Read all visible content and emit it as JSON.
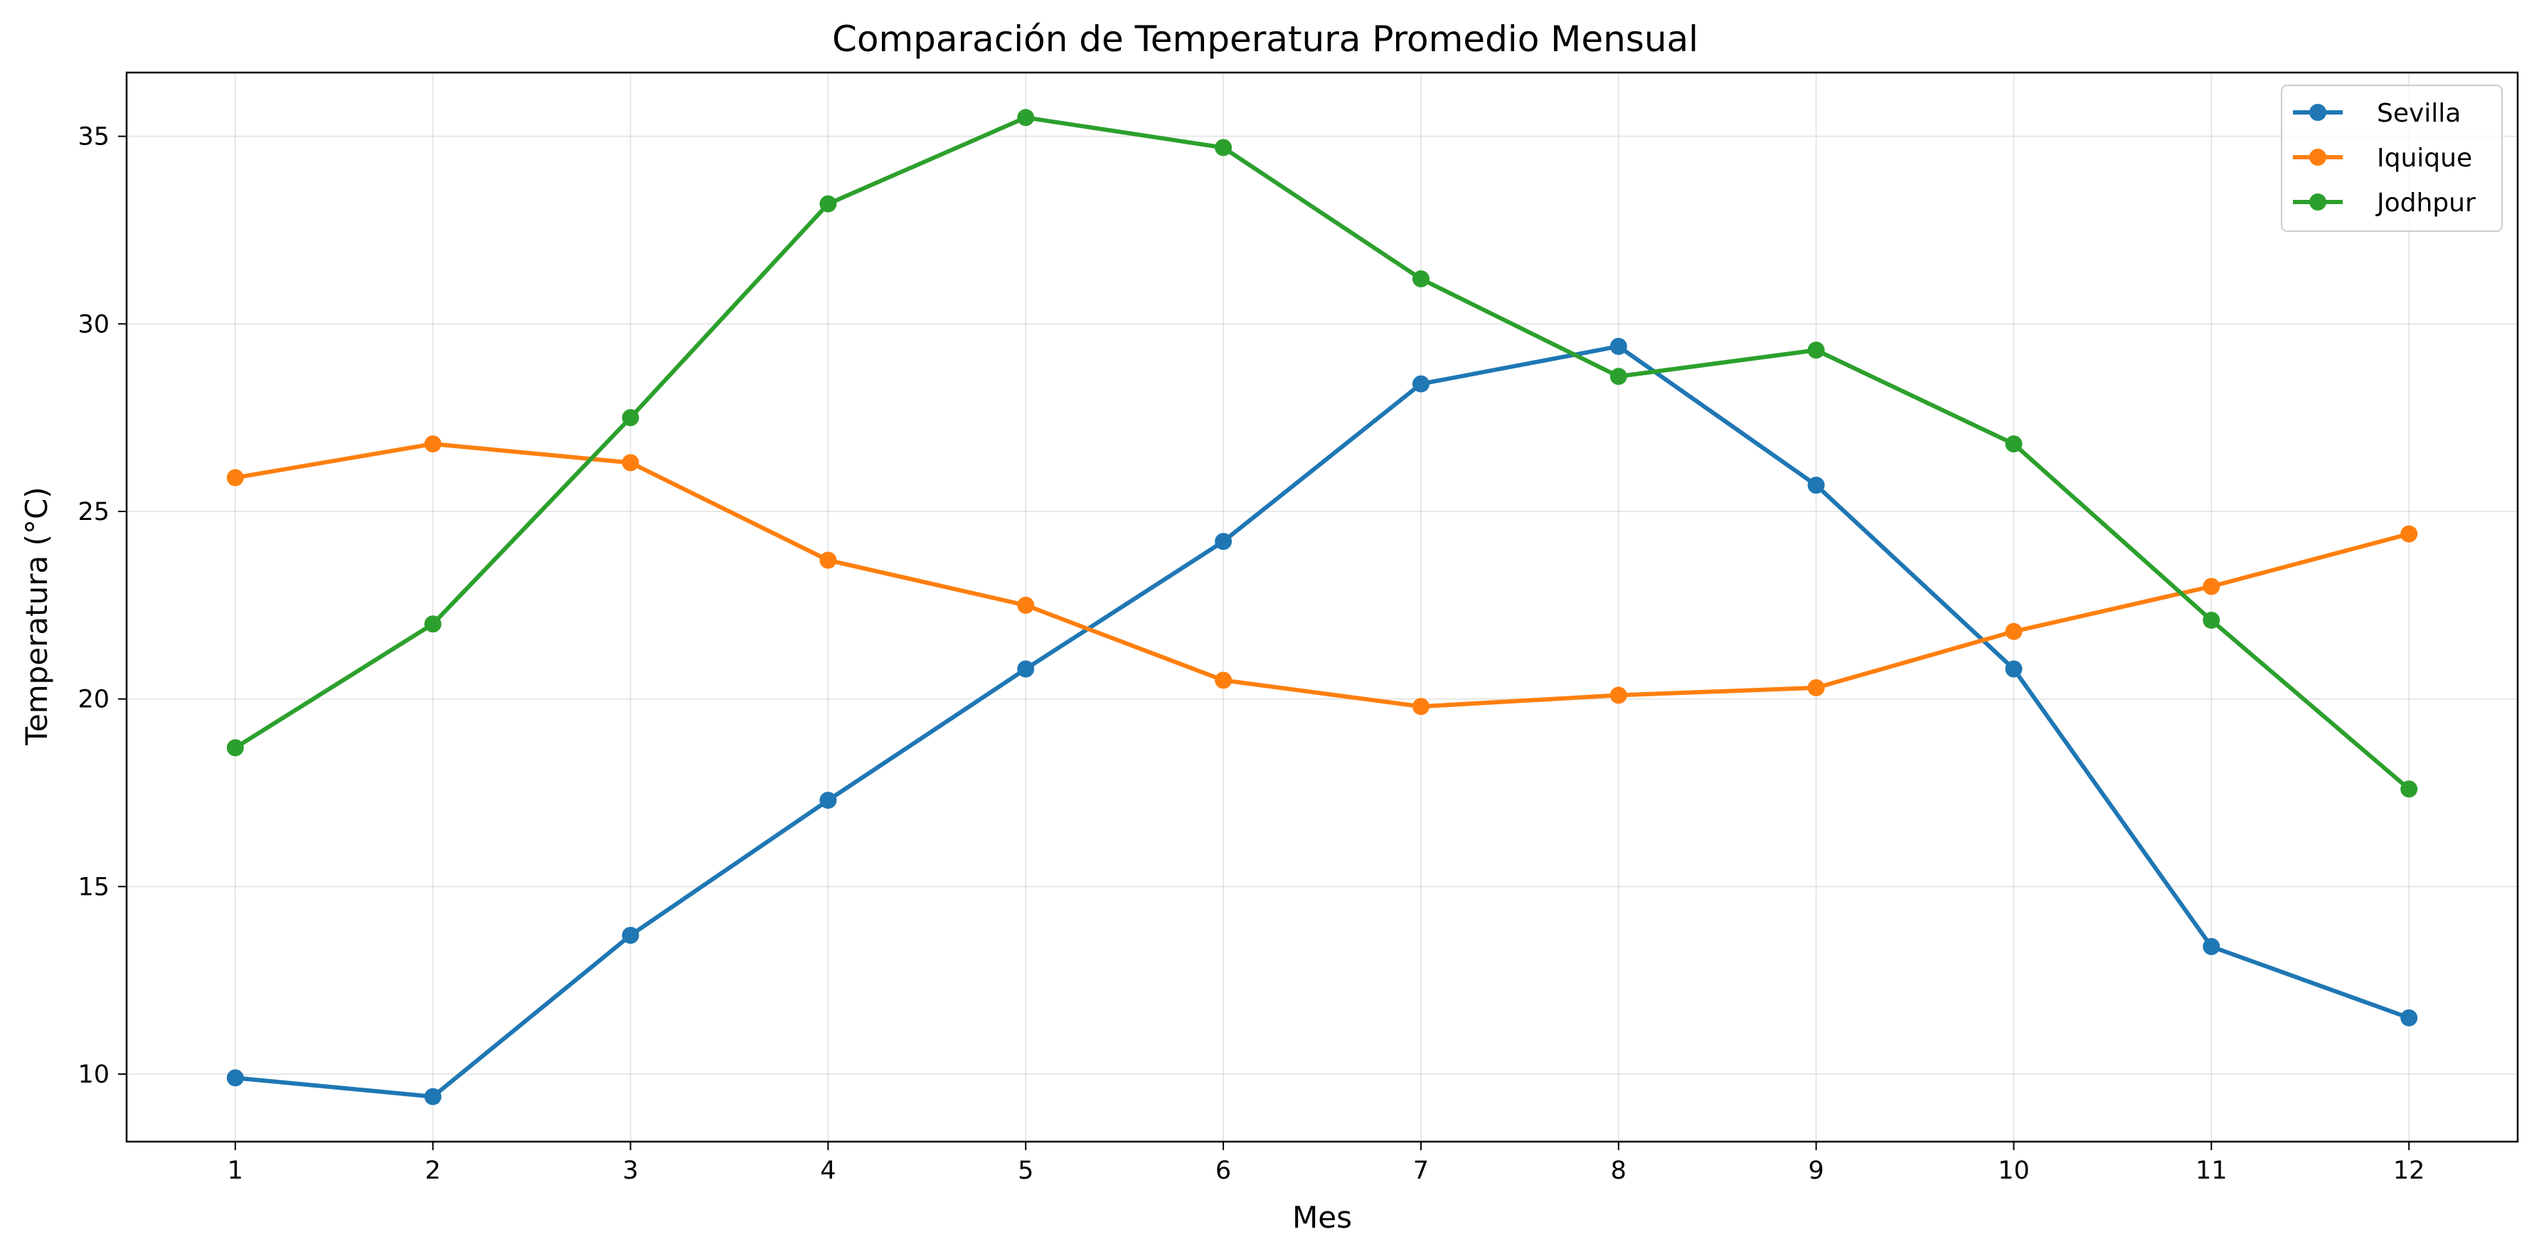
{
  "chart_data": {
    "type": "line",
    "title": "Comparación de Temperatura Promedio Mensual",
    "xlabel": "Mes",
    "ylabel": "Temperatura (°C)",
    "x": [
      1,
      2,
      3,
      4,
      5,
      6,
      7,
      8,
      9,
      10,
      11,
      12
    ],
    "xlim": [
      0.45,
      12.55
    ],
    "ylim": [
      8.2,
      36.7
    ],
    "yticks": [
      10,
      15,
      20,
      25,
      30,
      35
    ],
    "grid": true,
    "legend_position": "top-right",
    "series": [
      {
        "name": "Sevilla",
        "color": "#1f77b4",
        "values": [
          9.9,
          9.4,
          13.7,
          17.3,
          20.8,
          24.2,
          28.4,
          29.4,
          25.7,
          20.8,
          13.4,
          11.5
        ]
      },
      {
        "name": "Iquique",
        "color": "#ff7f0e",
        "values": [
          25.9,
          26.8,
          26.3,
          23.7,
          22.5,
          20.5,
          19.8,
          20.1,
          20.3,
          21.8,
          23.0,
          24.4
        ]
      },
      {
        "name": "Jodhpur",
        "color": "#2ca02c",
        "values": [
          18.7,
          22.0,
          27.5,
          33.2,
          35.5,
          34.7,
          31.2,
          28.6,
          29.3,
          26.8,
          22.1,
          17.6
        ]
      }
    ]
  }
}
